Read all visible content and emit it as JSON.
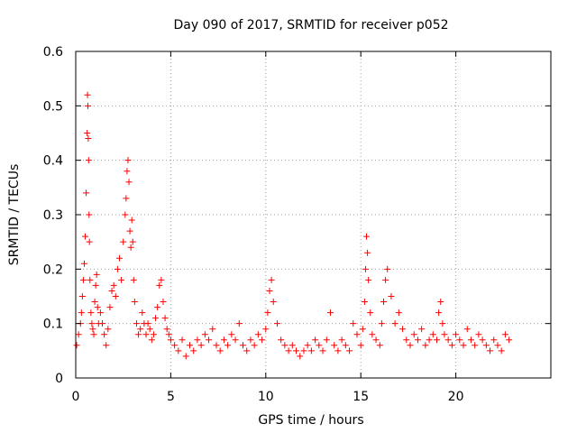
{
  "chart_data": {
    "type": "scatter",
    "title": "Day 090 of 2017, SRMTID for receiver p052",
    "xlabel": "GPS time / hours",
    "ylabel": "SRMTID / TECUs",
    "xlim": [
      0,
      25
    ],
    "ylim": [
      0,
      0.6
    ],
    "xticks": [
      0,
      5,
      10,
      15,
      20
    ],
    "xtick_labels": [
      "0",
      "5",
      "10",
      "15",
      "20"
    ],
    "yticks": [
      0,
      0.1,
      0.2,
      0.3,
      0.4,
      0.5,
      0.6
    ],
    "ytick_labels": [
      "0",
      "0.1",
      "0.2",
      "0.3",
      "0.4",
      "0.5",
      "0.6"
    ],
    "grid": true,
    "marker": "+",
    "series": [
      {
        "name": "SRMTID p052",
        "color": "#ff0000",
        "x": [
          0.05,
          0.15,
          0.25,
          0.3,
          0.35,
          0.4,
          0.45,
          0.5,
          0.55,
          0.6,
          0.62,
          0.64,
          0.66,
          0.68,
          0.7,
          0.72,
          0.75,
          0.8,
          0.85,
          0.9,
          0.95,
          1.0,
          1.05,
          1.1,
          1.15,
          1.2,
          1.3,
          1.4,
          1.5,
          1.6,
          1.7,
          1.8,
          1.9,
          2.0,
          2.1,
          2.2,
          2.3,
          2.4,
          2.5,
          2.6,
          2.65,
          2.7,
          2.75,
          2.8,
          2.85,
          2.9,
          2.95,
          3.0,
          3.05,
          3.1,
          3.2,
          3.3,
          3.4,
          3.5,
          3.6,
          3.7,
          3.8,
          3.9,
          4.0,
          4.1,
          4.2,
          4.3,
          4.4,
          4.5,
          4.6,
          4.7,
          4.8,
          4.9,
          5.0,
          5.2,
          5.4,
          5.6,
          5.8,
          6.0,
          6.2,
          6.4,
          6.6,
          6.8,
          7.0,
          7.2,
          7.4,
          7.6,
          7.8,
          8.0,
          8.2,
          8.4,
          8.6,
          8.8,
          9.0,
          9.2,
          9.4,
          9.6,
          9.8,
          10.0,
          10.1,
          10.2,
          10.3,
          10.4,
          10.6,
          10.8,
          11.0,
          11.2,
          11.4,
          11.6,
          11.8,
          12.0,
          12.2,
          12.4,
          12.6,
          12.8,
          13.0,
          13.2,
          13.4,
          13.6,
          13.8,
          14.0,
          14.2,
          14.4,
          14.6,
          14.8,
          15.0,
          15.1,
          15.2,
          15.25,
          15.3,
          15.35,
          15.4,
          15.5,
          15.6,
          15.8,
          16.0,
          16.1,
          16.2,
          16.3,
          16.4,
          16.6,
          16.8,
          17.0,
          17.2,
          17.4,
          17.6,
          17.8,
          18.0,
          18.2,
          18.4,
          18.6,
          18.8,
          19.0,
          19.1,
          19.2,
          19.3,
          19.4,
          19.6,
          19.8,
          20.0,
          20.2,
          20.4,
          20.6,
          20.8,
          21.0,
          21.2,
          21.4,
          21.6,
          21.8,
          22.0,
          22.2,
          22.4,
          22.6,
          22.8
        ],
        "y": [
          0.06,
          0.08,
          0.1,
          0.12,
          0.15,
          0.18,
          0.21,
          0.26,
          0.34,
          0.45,
          0.52,
          0.5,
          0.44,
          0.4,
          0.3,
          0.25,
          0.18,
          0.12,
          0.1,
          0.09,
          0.08,
          0.14,
          0.17,
          0.19,
          0.13,
          0.1,
          0.12,
          0.1,
          0.08,
          0.06,
          0.09,
          0.13,
          0.16,
          0.17,
          0.15,
          0.2,
          0.22,
          0.18,
          0.25,
          0.3,
          0.33,
          0.38,
          0.4,
          0.36,
          0.27,
          0.24,
          0.29,
          0.25,
          0.18,
          0.14,
          0.1,
          0.08,
          0.09,
          0.12,
          0.1,
          0.08,
          0.1,
          0.09,
          0.07,
          0.08,
          0.11,
          0.13,
          0.17,
          0.18,
          0.14,
          0.11,
          0.09,
          0.08,
          0.07,
          0.06,
          0.05,
          0.07,
          0.04,
          0.06,
          0.05,
          0.07,
          0.06,
          0.08,
          0.07,
          0.09,
          0.06,
          0.05,
          0.07,
          0.06,
          0.08,
          0.07,
          0.1,
          0.06,
          0.05,
          0.07,
          0.06,
          0.08,
          0.07,
          0.09,
          0.12,
          0.16,
          0.18,
          0.14,
          0.1,
          0.07,
          0.06,
          0.05,
          0.06,
          0.05,
          0.04,
          0.05,
          0.06,
          0.05,
          0.07,
          0.06,
          0.05,
          0.07,
          0.12,
          0.06,
          0.05,
          0.07,
          0.06,
          0.05,
          0.1,
          0.08,
          0.06,
          0.09,
          0.14,
          0.2,
          0.26,
          0.23,
          0.18,
          0.12,
          0.08,
          0.07,
          0.06,
          0.1,
          0.14,
          0.18,
          0.2,
          0.15,
          0.1,
          0.12,
          0.09,
          0.07,
          0.06,
          0.08,
          0.07,
          0.09,
          0.06,
          0.07,
          0.08,
          0.07,
          0.12,
          0.14,
          0.1,
          0.08,
          0.07,
          0.06,
          0.08,
          0.07,
          0.06,
          0.09,
          0.07,
          0.06,
          0.08,
          0.07,
          0.06,
          0.05,
          0.07,
          0.06,
          0.05,
          0.08,
          0.07
        ]
      }
    ]
  }
}
